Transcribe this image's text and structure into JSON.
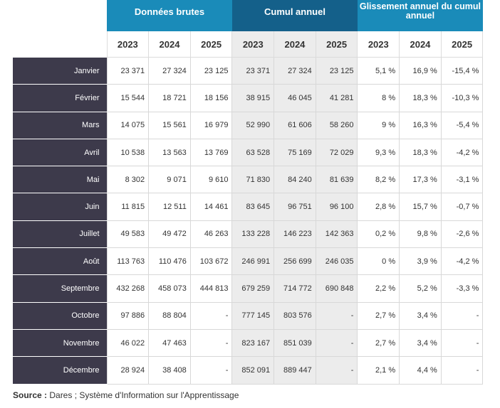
{
  "groups": [
    "Données brutes",
    "Cumul annuel",
    "Glissement annuel du cumul annuel"
  ],
  "years": [
    "2023",
    "2024",
    "2025",
    "2023",
    "2024",
    "2025",
    "2023",
    "2024",
    "2025"
  ],
  "rows": [
    {
      "month": "Janvier",
      "v": [
        "23 371",
        "27 324",
        "23 125",
        "23 371",
        "27 324",
        "23 125",
        "5,1 %",
        "16,9 %",
        "-15,4 %"
      ]
    },
    {
      "month": "Février",
      "v": [
        "15 544",
        "18 721",
        "18 156",
        "38 915",
        "46 045",
        "41 281",
        "8 %",
        "18,3 %",
        "-10,3 %"
      ]
    },
    {
      "month": "Mars",
      "v": [
        "14 075",
        "15 561",
        "16 979",
        "52 990",
        "61 606",
        "58 260",
        "9 %",
        "16,3 %",
        "-5,4 %"
      ]
    },
    {
      "month": "Avril",
      "v": [
        "10 538",
        "13 563",
        "13 769",
        "63 528",
        "75 169",
        "72 029",
        "9,3 %",
        "18,3 %",
        "-4,2 %"
      ]
    },
    {
      "month": "Mai",
      "v": [
        "8 302",
        "9 071",
        "9 610",
        "71 830",
        "84 240",
        "81 639",
        "8,2 %",
        "17,3 %",
        "-3,1 %"
      ]
    },
    {
      "month": "Juin",
      "v": [
        "11 815",
        "12 511",
        "14 461",
        "83 645",
        "96 751",
        "96 100",
        "2,8 %",
        "15,7 %",
        "-0,7 %"
      ]
    },
    {
      "month": "Juillet",
      "v": [
        "49 583",
        "49 472",
        "46 263",
        "133 228",
        "146 223",
        "142 363",
        "0,2 %",
        "9,8 %",
        "-2,6 %"
      ]
    },
    {
      "month": "Août",
      "v": [
        "113 763",
        "110 476",
        "103 672",
        "246 991",
        "256 699",
        "246 035",
        "0 %",
        "3,9 %",
        "-4,2 %"
      ]
    },
    {
      "month": "Septembre",
      "v": [
        "432 268",
        "458 073",
        "444 813",
        "679 259",
        "714 772",
        "690 848",
        "2,2 %",
        "5,2 %",
        "-3,3 %"
      ]
    },
    {
      "month": "Octobre",
      "v": [
        "97 886",
        "88 804",
        "-",
        "777 145",
        "803 576",
        "-",
        "2,7 %",
        "3,4 %",
        "-"
      ]
    },
    {
      "month": "Novembre",
      "v": [
        "46 022",
        "47 463",
        "-",
        "823 167",
        "851 039",
        "-",
        "2,7 %",
        "3,4 %",
        "-"
      ]
    },
    {
      "month": "Décembre",
      "v": [
        "28 924",
        "38 408",
        "-",
        "852 091",
        "889 447",
        "-",
        "2,1 %",
        "4,4 %",
        "-"
      ]
    }
  ],
  "source": {
    "label": "Source :",
    "text": " Dares ; Système d'Information sur l'Apprentissage"
  },
  "colors": {
    "group_light": "#1a8bb9",
    "group_dark": "#14608a",
    "month_bg": "#3d3a4b",
    "shade": "#ececec"
  }
}
